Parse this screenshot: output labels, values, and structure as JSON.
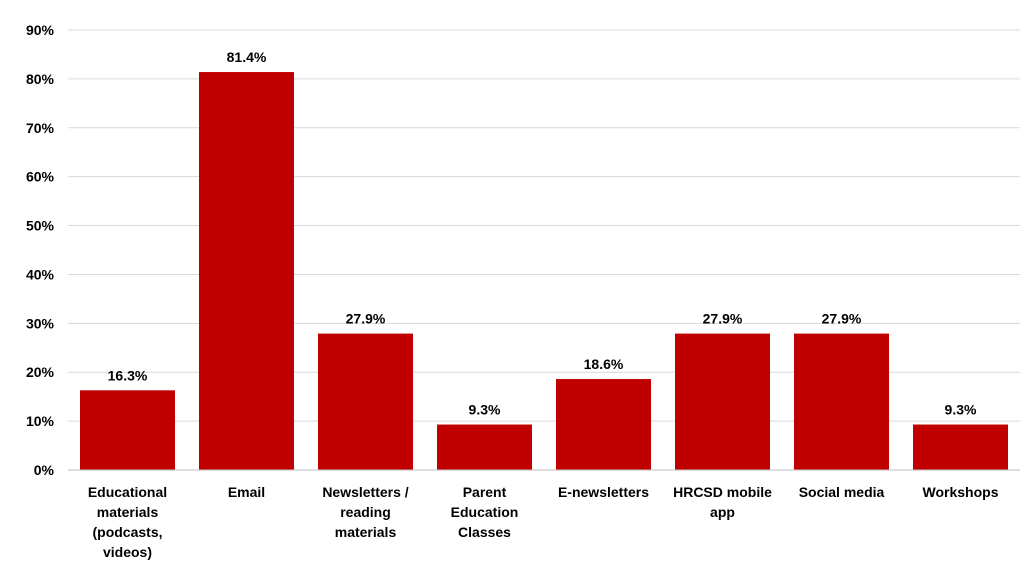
{
  "chart_data": {
    "type": "bar",
    "categories": [
      [
        "Educational",
        "materials",
        "(podcasts,",
        "videos)"
      ],
      [
        "Email"
      ],
      [
        "Newsletters /",
        "reading",
        "materials"
      ],
      [
        "Parent",
        "Education",
        "Classes"
      ],
      [
        "E-newsletters"
      ],
      [
        "HRCSD mobile",
        "app"
      ],
      [
        "Social media"
      ],
      [
        "Workshops"
      ]
    ],
    "values": [
      16.3,
      81.4,
      27.9,
      9.3,
      18.6,
      27.9,
      27.9,
      9.3
    ],
    "data_labels": [
      "16.3%",
      "81.4%",
      "27.9%",
      "9.3%",
      "18.6%",
      "27.9%",
      "27.9%",
      "9.3%"
    ],
    "y_ticks": [
      0,
      10,
      20,
      30,
      40,
      50,
      60,
      70,
      80,
      90
    ],
    "y_tick_labels": [
      "0%",
      "10%",
      "20%",
      "30%",
      "40%",
      "50%",
      "60%",
      "70%",
      "80%",
      "90%"
    ],
    "ylim": [
      0,
      90
    ],
    "grid": true,
    "legend": "none",
    "bar_color": "#c00000"
  }
}
